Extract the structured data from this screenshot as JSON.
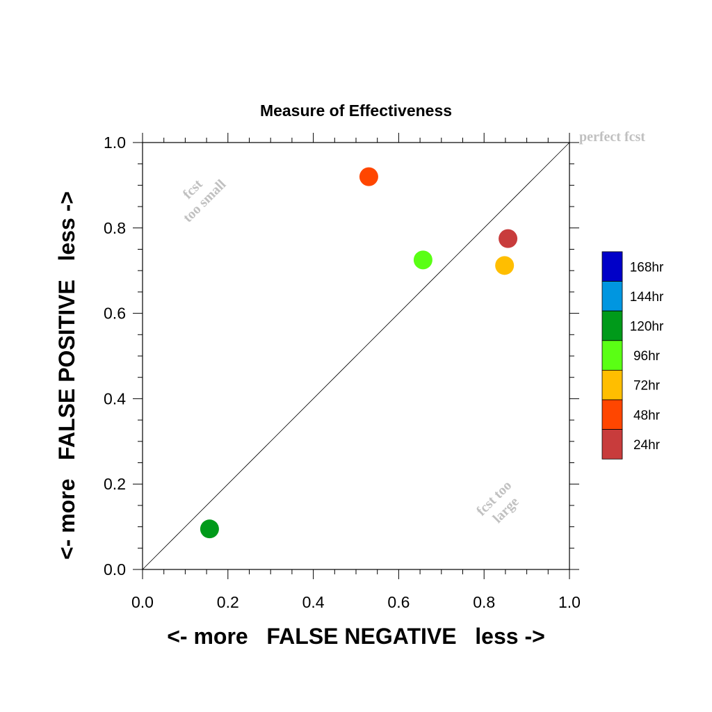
{
  "chart_data": {
    "type": "scatter",
    "title": "Measure of Effectiveness",
    "xlabel": "<- more   FALSE NEGATIVE   less ->",
    "ylabel": "<- more   FALSE POSITIVE   less ->",
    "xlim": [
      0.0,
      1.0
    ],
    "ylim": [
      0.0,
      1.0
    ],
    "x_ticks": [
      "0.0",
      "0.2",
      "0.4",
      "0.6",
      "0.8",
      "1.0"
    ],
    "y_ticks": [
      "0.0",
      "0.2",
      "0.4",
      "0.6",
      "0.8",
      "1.0"
    ],
    "grid": false,
    "reference_line": {
      "from": [
        0.0,
        0.0
      ],
      "to": [
        1.0,
        1.0
      ]
    },
    "annotations": {
      "perfect": "perfect fcst",
      "too_small_line1": "fcst",
      "too_small_line2": "too small",
      "too_large_line1": "fcst too",
      "too_large_line2": "large"
    },
    "legend": {
      "placement": "right",
      "entries": [
        {
          "label": "168hr",
          "color": "#0000c8"
        },
        {
          "label": "144hr",
          "color": "#0096e0"
        },
        {
          "label": "120hr",
          "color": "#009a1a"
        },
        {
          "label": "96hr",
          "color": "#5aff14"
        },
        {
          "label": "72hr",
          "color": "#ffbe00"
        },
        {
          "label": "48hr",
          "color": "#ff4600"
        },
        {
          "label": "24hr",
          "color": "#c83c3c"
        }
      ]
    },
    "points": [
      {
        "lead": "24hr",
        "x": 0.856,
        "y": 0.775,
        "color": "#c83c3c"
      },
      {
        "lead": "48hr",
        "x": 0.53,
        "y": 0.92,
        "color": "#ff4600"
      },
      {
        "lead": "72hr",
        "x": 0.848,
        "y": 0.712,
        "color": "#ffbe00"
      },
      {
        "lead": "96hr",
        "x": 0.657,
        "y": 0.725,
        "color": "#5aff14"
      },
      {
        "lead": "120hr",
        "x": 0.157,
        "y": 0.095,
        "color": "#009a1a"
      }
    ]
  }
}
